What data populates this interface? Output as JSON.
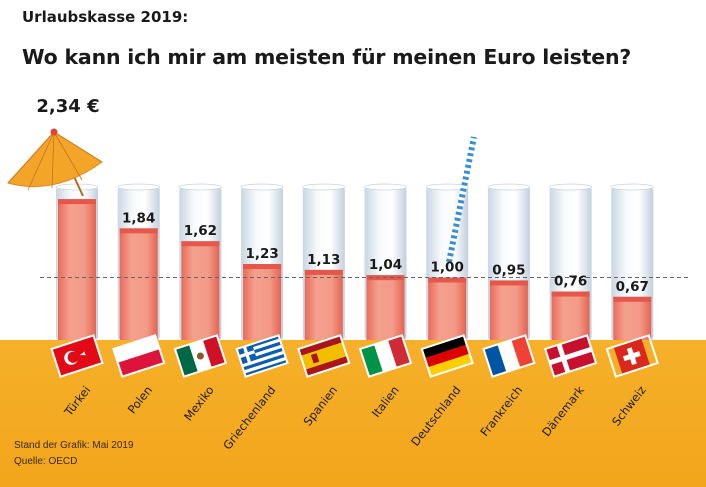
{
  "kicker": "Urlaubskasse 2019:",
  "title": "Wo kann ich mir am meisten für meinen Euro leisten?",
  "footer": {
    "stand": "Stand der Grafik: Mai 2019",
    "quelle": "Quelle: OECD"
  },
  "colors": {
    "sand": "#f4ab1f",
    "drink": "#f08070",
    "drink_dark": "#e06050",
    "glass": "#e8eef4",
    "umbrella": "#f3a52a",
    "straw": "#3a8fd0"
  },
  "chart_data": {
    "type": "bar",
    "title": "Wo kann ich mir am meisten für meinen Euro leisten?",
    "categories": [
      "Türkei",
      "Polen",
      "Mexiko",
      "Griechenland",
      "Spanien",
      "Italien",
      "Deutschland",
      "Frankreich",
      "Dänemark",
      "Schweiz"
    ],
    "values": [
      2.34,
      1.84,
      1.62,
      1.23,
      1.13,
      1.04,
      1.0,
      0.95,
      0.76,
      0.67
    ],
    "value_labels": [
      "2,34 €",
      "1,84",
      "1,62",
      "1,23",
      "1,13",
      "1,04",
      "1,00",
      "0,95",
      "0,76",
      "0,67"
    ],
    "reference_line": 1.0,
    "ylim": [
      0,
      2.6
    ],
    "xlabel": "",
    "ylabel": "",
    "grid": false,
    "legend": "none",
    "flags": [
      "turkey-flag-icon",
      "poland-flag-icon",
      "mexico-flag-icon",
      "greece-flag-icon",
      "spain-flag-icon",
      "italy-flag-icon",
      "germany-flag-icon",
      "france-flag-icon",
      "denmark-flag-icon",
      "switzerland-flag-icon"
    ]
  }
}
